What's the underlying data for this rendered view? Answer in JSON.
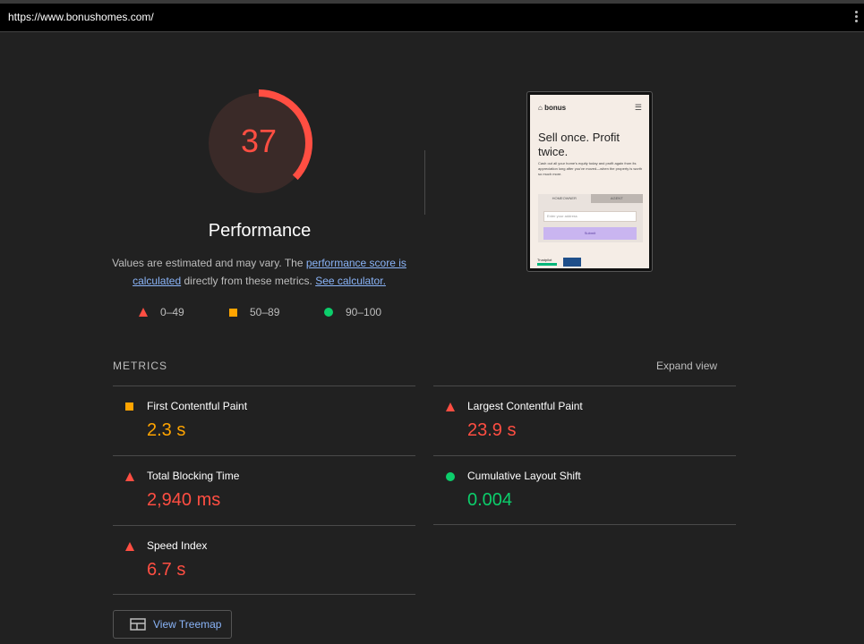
{
  "url": "https://www.bonushomes.com/",
  "score": {
    "value": "37",
    "fraction": 0.37,
    "color": "#ff4e42",
    "bg": "#3a2a28"
  },
  "title": "Performance",
  "description": {
    "text1": "Values are estimated and may vary. The ",
    "link1": "performance score is calculated",
    "text2": " directly from these metrics. ",
    "link2": "See calculator."
  },
  "legend": [
    {
      "icon": "triangle-icon",
      "label": "0–49",
      "color": "#ff4e42"
    },
    {
      "icon": "square-icon",
      "label": "50–89",
      "color": "#ffa400"
    },
    {
      "icon": "circle-icon",
      "label": "90–100",
      "color": "#0cce6b"
    }
  ],
  "screenshot": {
    "logo": "bonus",
    "headline": "Sell once. Profit twice.",
    "subtext": "Cash out all your home's equity today and profit again from its appreciation long after you've moved—when the property is worth so much more.",
    "tab_homeowner": "HOMEOWNER",
    "tab_agent": "AGENT",
    "input_placeholder": "Enter your address",
    "submit": "Submit",
    "trustpilot": "Trustpilot"
  },
  "metrics": {
    "header": "METRICS",
    "expand": "Expand view",
    "items": [
      {
        "name": "First Contentful Paint",
        "value": "2.3 s",
        "status": "orange"
      },
      {
        "name": "Largest Contentful Paint",
        "value": "23.9 s",
        "status": "red"
      },
      {
        "name": "Total Blocking Time",
        "value": "2,940 ms",
        "status": "red"
      },
      {
        "name": "Cumulative Layout Shift",
        "value": "0.004",
        "status": "green"
      },
      {
        "name": "Speed Index",
        "value": "6.7 s",
        "status": "red"
      }
    ]
  },
  "treemap_button": "View Treemap"
}
